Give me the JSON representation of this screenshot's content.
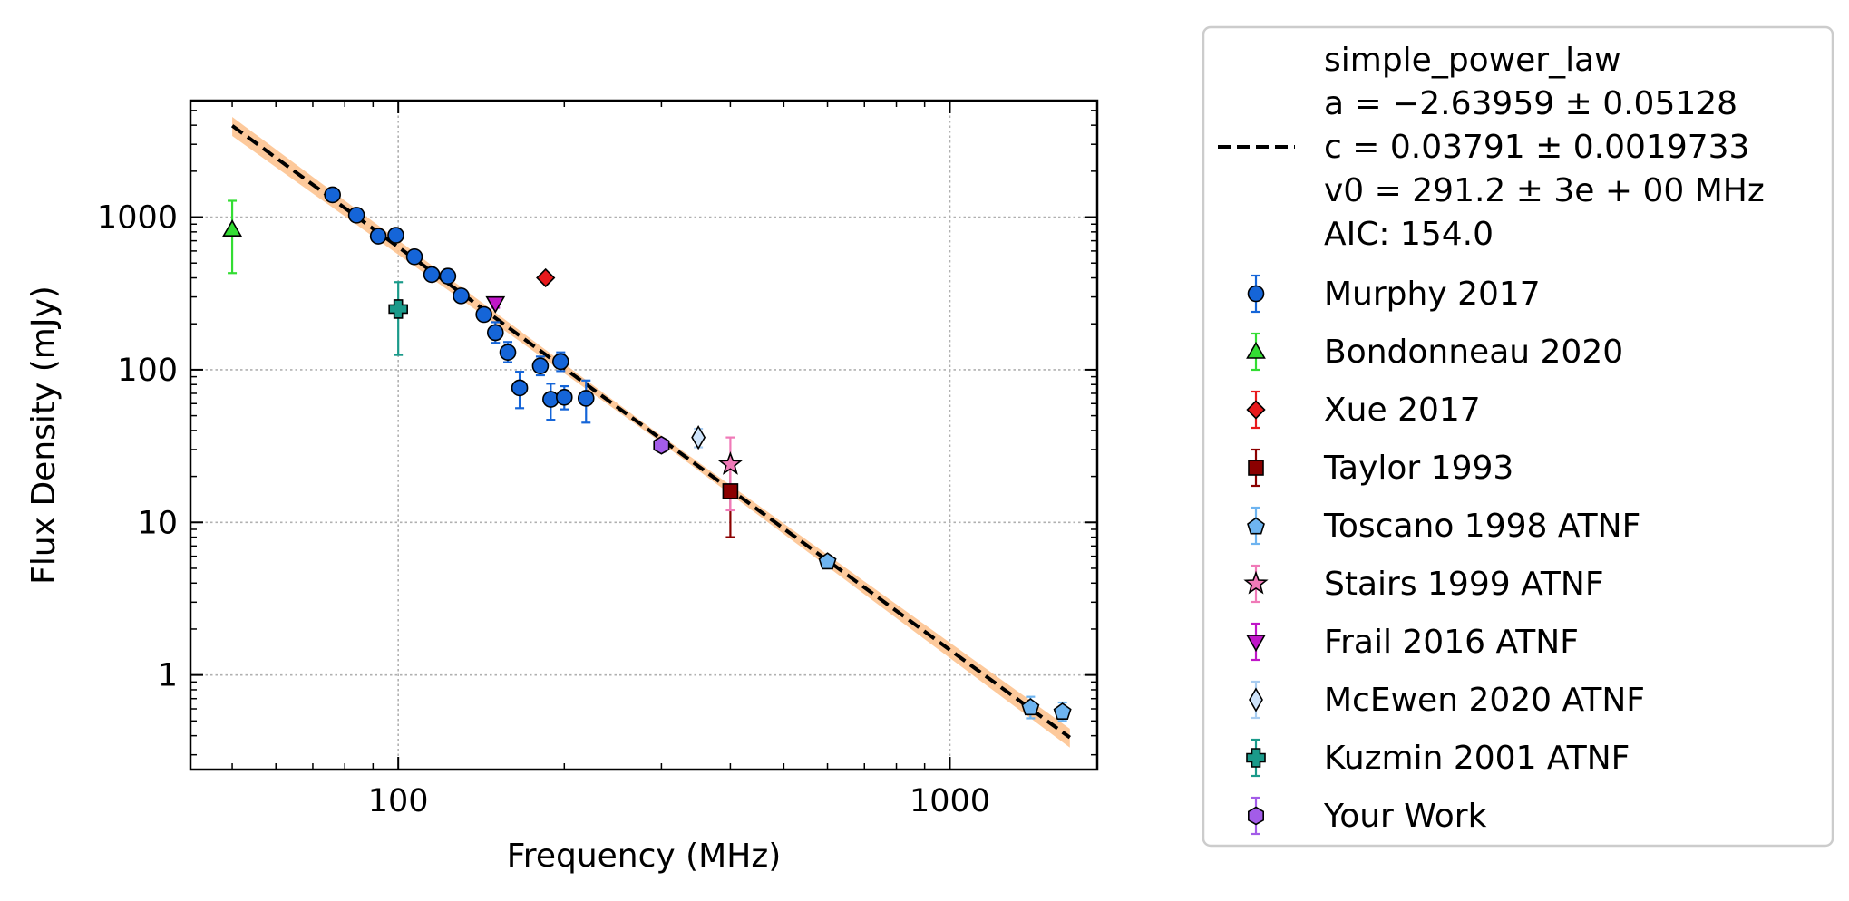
{
  "chart_data": {
    "type": "scatter",
    "xlabel": "Frequency (MHz)",
    "ylabel": "Flux Density (mJy)",
    "xscale": "log",
    "yscale": "log",
    "xlim": [
      42,
      1850
    ],
    "ylim": [
      0.24,
      5800
    ],
    "xticks": [
      {
        "value": 100,
        "label": "100"
      },
      {
        "value": 1000,
        "label": "1000"
      }
    ],
    "yticks": [
      {
        "value": 1,
        "label": "1"
      },
      {
        "value": 10,
        "label": "10"
      },
      {
        "value": 100,
        "label": "100"
      },
      {
        "value": 1000,
        "label": "1000"
      }
    ],
    "grid": true,
    "legend_position": "outside-right",
    "fit": {
      "label_lines": [
        "simple_power_law",
        "a = −2.63959 ± 0.05128",
        "c = 0.03791 ± 0.0019733",
        "v0 = 291.2 ± 3e + 00 MHz",
        "AIC: 154.0"
      ],
      "a": -2.63959,
      "c": 0.03791,
      "v0": 291.2,
      "x_range": [
        50,
        1650
      ],
      "color": "#000000",
      "band_color": "#fdbf8a"
    },
    "series": [
      {
        "name": "Murphy 2017",
        "marker": "circle",
        "color": "#1565d8",
        "ecolor": "#1565d8",
        "points": [
          {
            "x": 76,
            "y": 1400,
            "ylo": 1330,
            "yhi": 1470
          },
          {
            "x": 84,
            "y": 1030,
            "ylo": 980,
            "yhi": 1080
          },
          {
            "x": 92,
            "y": 750,
            "ylo": 715,
            "yhi": 790
          },
          {
            "x": 99,
            "y": 760,
            "ylo": 725,
            "yhi": 800
          },
          {
            "x": 107,
            "y": 550,
            "ylo": 520,
            "yhi": 580
          },
          {
            "x": 115,
            "y": 420,
            "ylo": 400,
            "yhi": 445
          },
          {
            "x": 123,
            "y": 410,
            "ylo": 390,
            "yhi": 430
          },
          {
            "x": 130,
            "y": 305,
            "ylo": 290,
            "yhi": 320
          },
          {
            "x": 143,
            "y": 230,
            "ylo": 215,
            "yhi": 245
          },
          {
            "x": 150,
            "y": 175,
            "ylo": 150,
            "yhi": 205
          },
          {
            "x": 158,
            "y": 130,
            "ylo": 112,
            "yhi": 152
          },
          {
            "x": 166,
            "y": 76,
            "ylo": 56,
            "yhi": 97
          },
          {
            "x": 181,
            "y": 106,
            "ylo": 92,
            "yhi": 122
          },
          {
            "x": 189,
            "y": 64,
            "ylo": 47,
            "yhi": 81
          },
          {
            "x": 197,
            "y": 113,
            "ylo": 98,
            "yhi": 130
          },
          {
            "x": 200,
            "y": 66,
            "ylo": 55,
            "yhi": 78
          },
          {
            "x": 219,
            "y": 65,
            "ylo": 45,
            "yhi": 85
          }
        ]
      },
      {
        "name": "Bondonneau 2020",
        "marker": "triangle-up",
        "color": "#33dd33",
        "ecolor": "#33dd33",
        "points": [
          {
            "x": 50,
            "y": 830,
            "ylo": 430,
            "yhi": 1280
          }
        ]
      },
      {
        "name": "Xue 2017",
        "marker": "diamond",
        "color": "#e8191c",
        "ecolor": "#e8191c",
        "points": [
          {
            "x": 185,
            "y": 400,
            "ylo": 385,
            "yhi": 415
          }
        ]
      },
      {
        "name": "Taylor 1993",
        "marker": "square",
        "color": "#8b0000",
        "ecolor": "#8b0000",
        "points": [
          {
            "x": 400,
            "y": 16,
            "ylo": 8,
            "yhi": 24
          }
        ]
      },
      {
        "name": "Toscano 1998 ATNF",
        "marker": "pentagon",
        "color": "#6eb4f0",
        "ecolor": "#6eb4f0",
        "points": [
          {
            "x": 600,
            "y": 5.6,
            "ylo": 5.3,
            "yhi": 5.9
          },
          {
            "x": 1400,
            "y": 0.62,
            "ylo": 0.52,
            "yhi": 0.72
          },
          {
            "x": 1600,
            "y": 0.58,
            "ylo": 0.5,
            "yhi": 0.66
          }
        ]
      },
      {
        "name": "Stairs 1999 ATNF",
        "marker": "star",
        "color": "#f07ab8",
        "ecolor": "#f07ab8",
        "points": [
          {
            "x": 400,
            "y": 24,
            "ylo": 12,
            "yhi": 36
          }
        ]
      },
      {
        "name": "Frail 2016 ATNF",
        "marker": "triangle-down",
        "color": "#c016c8",
        "ecolor": "#c016c8",
        "points": [
          {
            "x": 150,
            "y": 272,
            "ylo": 255,
            "yhi": 290
          }
        ]
      },
      {
        "name": "McEwen 2020 ATNF",
        "marker": "thin-diamond",
        "color": "#cfe4fb",
        "ecolor": "#a8ccf0",
        "points": [
          {
            "x": 350,
            "y": 36,
            "ylo": 31,
            "yhi": 41
          }
        ]
      },
      {
        "name": "Kuzmin 2001 ATNF",
        "marker": "plus",
        "color": "#1a9a8a",
        "ecolor": "#1a9a8a",
        "points": [
          {
            "x": 100,
            "y": 250,
            "ylo": 125,
            "yhi": 375
          }
        ]
      },
      {
        "name": "Your Work",
        "marker": "hexagon",
        "color": "#a35ce8",
        "ecolor": "#a35ce8",
        "points": [
          {
            "x": 300,
            "y": 32,
            "ylo": 29,
            "yhi": 35
          }
        ]
      }
    ]
  }
}
